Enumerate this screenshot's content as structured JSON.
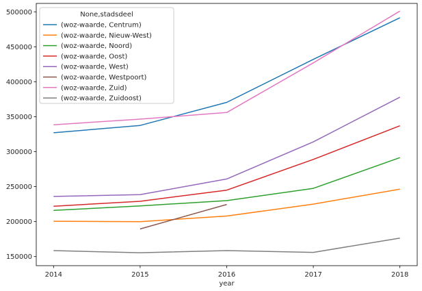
{
  "chart_data": {
    "type": "line",
    "title": "",
    "xlabel": "year",
    "ylabel": "",
    "x": [
      2014,
      2015,
      2016,
      2017,
      2018
    ],
    "xticks": [
      "2014",
      "2015",
      "2016",
      "2017",
      "2018"
    ],
    "yticks": [
      "150000",
      "200000",
      "250000",
      "300000",
      "350000",
      "400000",
      "450000",
      "500000"
    ],
    "ylim": [
      137000,
      512000
    ],
    "xlim": [
      2013.8,
      2018.2
    ],
    "grid": false,
    "legend": {
      "title": "None,stadsdeel",
      "placement": "upper-left"
    },
    "series": [
      {
        "name": "(woz-waarde, Centrum)",
        "color": "#1f77b4",
        "values": [
          327000,
          337500,
          370500,
          432000,
          491500
        ]
      },
      {
        "name": "(woz-waarde, Nieuw-West)",
        "color": "#ff7f0e",
        "values": [
          200500,
          200000,
          208000,
          225000,
          246500
        ]
      },
      {
        "name": "(woz-waarde, Noord)",
        "color": "#2ca02c",
        "values": [
          216000,
          222500,
          230000,
          247500,
          291500
        ]
      },
      {
        "name": "(woz-waarde, Oost)",
        "color": "#d62728",
        "values": [
          222000,
          229000,
          245000,
          289000,
          337000
        ]
      },
      {
        "name": "(woz-waarde, West)",
        "color": "#9467bd",
        "values": [
          236000,
          238500,
          261000,
          314000,
          378000
        ]
      },
      {
        "name": "(woz-waarde, Westpoort)",
        "color": "#8c564b",
        "values": [
          null,
          189500,
          224500,
          null,
          null
        ]
      },
      {
        "name": "(woz-waarde, Zuid)",
        "color": "#e377c2",
        "values": [
          338500,
          346500,
          356000,
          427000,
          501000
        ]
      },
      {
        "name": "(woz-waarde, Zuidoost)",
        "color": "#7f7f7f",
        "values": [
          158500,
          155500,
          158500,
          156000,
          176500
        ]
      }
    ]
  }
}
